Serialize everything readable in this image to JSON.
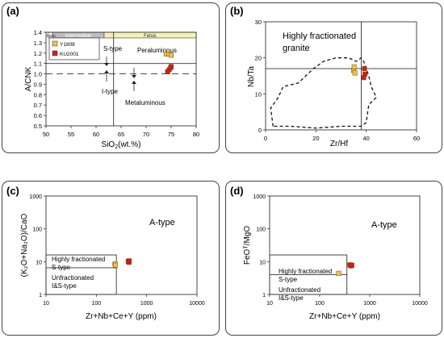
{
  "chart_data": [
    {
      "panel": "(a)",
      "type": "scatter",
      "xlabel": "SiO2(wt.%)",
      "ylabel": "A/CNK",
      "xlim": [
        50,
        80
      ],
      "ylim": [
        0.5,
        1.4
      ],
      "x_ticks": [
        50,
        55,
        60,
        65,
        70,
        75,
        80
      ],
      "y_ticks": [
        0.5,
        0.6,
        0.7,
        0.8,
        0.9,
        1.0,
        1.1,
        1.2,
        1.3,
        1.4
      ],
      "bands": [
        {
          "label": "basic",
          "from": 50,
          "to": 52
        },
        {
          "label": "intermediate",
          "from": 52,
          "to": 63
        },
        {
          "label": "Felsic",
          "from": 63,
          "to": 80
        }
      ],
      "reference_lines": [
        {
          "type": "horizontal",
          "y": 1.1,
          "style": "solid"
        },
        {
          "type": "horizontal",
          "y": 1.0,
          "style": "dashed"
        },
        {
          "type": "vertical",
          "x": 63.5,
          "style": "solid"
        }
      ],
      "annotations": [
        "S-type",
        "I-type",
        "Peraluminous",
        "Metaluminous"
      ],
      "series": [
        {
          "name": "Y1808",
          "color": "#f2c14e",
          "marker": "square",
          "points": [
            [
              74.0,
              1.19
            ],
            [
              74.6,
              1.19
            ],
            [
              75.0,
              1.18
            ]
          ]
        },
        {
          "name": "KU2001",
          "color": "#d7191c",
          "marker": "square",
          "points": [
            [
              74.3,
              1.02
            ],
            [
              74.6,
              1.04
            ],
            [
              74.9,
              1.06
            ],
            [
              75.0,
              1.07
            ]
          ]
        }
      ],
      "legend": "top-left"
    },
    {
      "panel": "(b)",
      "type": "scatter",
      "xlabel": "Zr/Hf",
      "ylabel": "Nb/Ta",
      "xlim": [
        0,
        60
      ],
      "ylim": [
        0,
        30
      ],
      "x_ticks": [
        0,
        20,
        40,
        60
      ],
      "y_ticks": [
        0,
        10,
        20,
        30
      ],
      "annotations": [
        "Highly fractionated",
        "granite"
      ],
      "reference_lines": [
        {
          "type": "horizontal",
          "y": 17,
          "style": "solid"
        },
        {
          "type": "vertical",
          "x": 38,
          "style": "solid"
        }
      ],
      "field_outline": [
        [
          3,
          1
        ],
        [
          2,
          6
        ],
        [
          5,
          9
        ],
        [
          7,
          12
        ],
        [
          13,
          13
        ],
        [
          19,
          17
        ],
        [
          23,
          19
        ],
        [
          28,
          20
        ],
        [
          33,
          20
        ],
        [
          36,
          19
        ],
        [
          38,
          20
        ],
        [
          39,
          19
        ],
        [
          41,
          15
        ],
        [
          42,
          12
        ],
        [
          44,
          9
        ],
        [
          41,
          7
        ],
        [
          40,
          2
        ],
        [
          38,
          1
        ],
        [
          30,
          1
        ],
        [
          20,
          0.5
        ],
        [
          10,
          1
        ],
        [
          3,
          1
        ]
      ],
      "series": [
        {
          "name": "Y1808",
          "color": "#f2c14e",
          "marker": "square",
          "points": [
            [
              35.0,
              16.5
            ],
            [
              35.2,
              17.5
            ],
            [
              35.5,
              15.8
            ]
          ]
        },
        {
          "name": "KU2001",
          "color": "#d7191c",
          "marker": "square",
          "points": [
            [
              39.3,
              17.0
            ],
            [
              39.5,
              15.5
            ],
            [
              39.0,
              14.5
            ]
          ]
        }
      ]
    },
    {
      "panel": "(c)",
      "type": "scatter",
      "xlabel": "Zr+Nb+Ce+Y (ppm)",
      "ylabel": "(K2O+Na2O)/CaO",
      "xscale": "log",
      "yscale": "log",
      "xlim": [
        10,
        10000
      ],
      "ylim": [
        1,
        1000
      ],
      "x_ticks": [
        10,
        100,
        1000,
        10000
      ],
      "y_ticks": [
        1,
        10,
        100,
        1000
      ],
      "annotations": [
        "A-type",
        "Highly fractionated",
        "S-type",
        "Unfractionated",
        "I&S-type"
      ],
      "field_boxes": [
        {
          "x": [
            10,
            250
          ],
          "y": [
            1,
            16
          ]
        },
        {
          "x": [
            10,
            250
          ],
          "y": [
            6.5,
            6.5
          ]
        }
      ],
      "series": [
        {
          "name": "Y1808",
          "color": "#f2c14e",
          "marker": "square",
          "points": [
            [
              235,
              8.5
            ],
            [
              240,
              7.8
            ]
          ]
        },
        {
          "name": "KU2001",
          "color": "#d7191c",
          "marker": "square",
          "points": [
            [
              430,
              10.2
            ],
            [
              445,
              9.5
            ],
            [
              450,
              10.6
            ]
          ]
        }
      ]
    },
    {
      "panel": "(d)",
      "type": "scatter",
      "xlabel": "Zr+Nb+Ce+Y (ppm)",
      "ylabel": "FeOT/MgO",
      "xscale": "log",
      "yscale": "log",
      "xlim": [
        10,
        10000
      ],
      "ylim": [
        1,
        1000
      ],
      "x_ticks": [
        10,
        100,
        1000,
        10000
      ],
      "y_ticks": [
        1,
        10,
        100,
        1000
      ],
      "annotations": [
        "A-type",
        "Highly fractionated",
        "S-type",
        "Unfractionated",
        "I&S-type"
      ],
      "field_boxes": [
        {
          "x": [
            10,
            350
          ],
          "y": [
            1,
            16
          ]
        },
        {
          "x": [
            10,
            350
          ],
          "y": [
            4,
            4
          ]
        }
      ],
      "series": [
        {
          "name": "Y1808",
          "color": "#f2c14e",
          "marker": "square",
          "points": [
            [
              240,
              4.4
            ]
          ]
        },
        {
          "name": "KU2001",
          "color": "#d7191c",
          "marker": "square",
          "points": [
            [
              400,
              8.0
            ],
            [
              420,
              7.4
            ],
            [
              440,
              7.8
            ]
          ]
        }
      ]
    }
  ],
  "labels": {
    "a": {
      "panel": "(a)",
      "ylabel": "A/CNK",
      "xlabel_main": "SiO",
      "xlabel_sub": "2",
      "xlabel_tail": "(wt.%)",
      "basic": "basic",
      "intermediate": "intermediate",
      "felsic": "Felsic",
      "s_type": "S-type",
      "i_type": "I-type",
      "peraluminous": "Peraluminous",
      "metaluminous": "Metaluminous",
      "legend1": "Y1808",
      "legend2": "KU2001"
    },
    "b": {
      "panel": "(b)",
      "ylabel": "Nb/Ta",
      "xlabel": "Zr/Hf",
      "ann1": "Highly fractionated",
      "ann2": "granite"
    },
    "c": {
      "panel": "(c)",
      "ylabel": "(K₂O+Na₂O)/CaO",
      "xlabel": "Zr+Nb+Ce+Y (ppm)",
      "atype": "A-type",
      "hf1": "Highly fractionated",
      "hf2": "S-type",
      "uf1": "Unfractionated",
      "uf2": "I&S-type"
    },
    "d": {
      "panel": "(d)",
      "ylabel": "FeOᵀ/MgO",
      "xlabel": "Zr+Nb+Ce+Y (ppm)",
      "atype": "A-type",
      "hf1": "Highly fractionated",
      "hf2": "S-type",
      "uf1": "Unfractionated",
      "uf2": "I&S-type"
    }
  }
}
